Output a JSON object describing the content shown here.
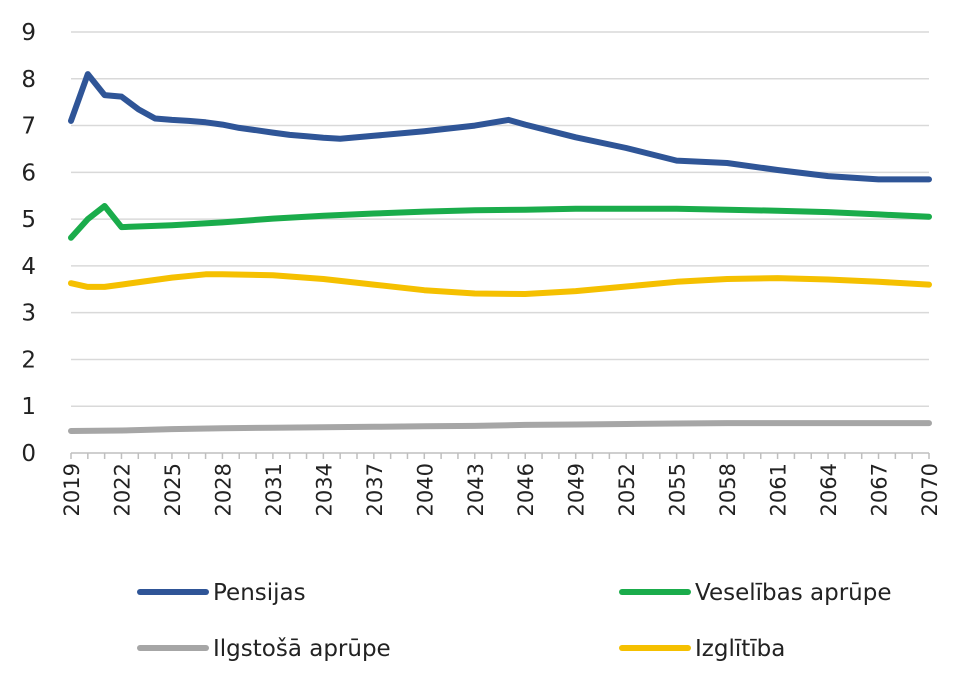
{
  "chart_data": {
    "type": "line",
    "title": "",
    "xlabel": "",
    "ylabel": "",
    "ylim": [
      0,
      9
    ],
    "yticks": [
      0,
      1,
      2,
      3,
      4,
      5,
      6,
      7,
      8,
      9
    ],
    "x_tick_labels": [
      "2019",
      "2022",
      "2025",
      "2028",
      "2031",
      "2034",
      "2037",
      "2040",
      "2043",
      "2046",
      "2049",
      "2052",
      "2055",
      "2058",
      "2061",
      "2064",
      "2067",
      "2070"
    ],
    "grid": "horizontal",
    "legend_position": "bottom",
    "series": [
      {
        "name": "Pensijas",
        "color": "#2f5597",
        "points": [
          [
            2019,
            7.1
          ],
          [
            2020,
            8.1
          ],
          [
            2021,
            7.65
          ],
          [
            2022,
            7.62
          ],
          [
            2023,
            7.35
          ],
          [
            2024,
            7.15
          ],
          [
            2025,
            7.12
          ],
          [
            2026,
            7.1
          ],
          [
            2027,
            7.07
          ],
          [
            2028,
            7.02
          ],
          [
            2029,
            6.95
          ],
          [
            2030,
            6.9
          ],
          [
            2031,
            6.85
          ],
          [
            2032,
            6.8
          ],
          [
            2033,
            6.77
          ],
          [
            2034,
            6.74
          ],
          [
            2035,
            6.72
          ],
          [
            2037,
            6.78
          ],
          [
            2040,
            6.88
          ],
          [
            2043,
            7.0
          ],
          [
            2045,
            7.12
          ],
          [
            2046,
            7.02
          ],
          [
            2049,
            6.75
          ],
          [
            2052,
            6.52
          ],
          [
            2055,
            6.25
          ],
          [
            2058,
            6.2
          ],
          [
            2061,
            6.05
          ],
          [
            2064,
            5.92
          ],
          [
            2067,
            5.85
          ],
          [
            2070,
            5.85
          ]
        ]
      },
      {
        "name": "Veselības aprūpe",
        "color": "#1aac4b",
        "points": [
          [
            2019,
            4.6
          ],
          [
            2020,
            5.0
          ],
          [
            2021,
            5.28
          ],
          [
            2022,
            4.83
          ],
          [
            2025,
            4.87
          ],
          [
            2028,
            4.93
          ],
          [
            2031,
            5.01
          ],
          [
            2034,
            5.07
          ],
          [
            2037,
            5.12
          ],
          [
            2040,
            5.16
          ],
          [
            2043,
            5.19
          ],
          [
            2046,
            5.2
          ],
          [
            2049,
            5.22
          ],
          [
            2052,
            5.22
          ],
          [
            2055,
            5.22
          ],
          [
            2058,
            5.2
          ],
          [
            2061,
            5.18
          ],
          [
            2064,
            5.15
          ],
          [
            2067,
            5.1
          ],
          [
            2070,
            5.05
          ]
        ]
      },
      {
        "name": "Ilgstošā aprūpe",
        "color": "#a6a6a6",
        "points": [
          [
            2019,
            0.47
          ],
          [
            2022,
            0.48
          ],
          [
            2025,
            0.51
          ],
          [
            2028,
            0.53
          ],
          [
            2031,
            0.54
          ],
          [
            2034,
            0.55
          ],
          [
            2037,
            0.56
          ],
          [
            2040,
            0.57
          ],
          [
            2043,
            0.58
          ],
          [
            2046,
            0.6
          ],
          [
            2049,
            0.61
          ],
          [
            2052,
            0.62
          ],
          [
            2055,
            0.63
          ],
          [
            2058,
            0.64
          ],
          [
            2061,
            0.64
          ],
          [
            2064,
            0.64
          ],
          [
            2067,
            0.64
          ],
          [
            2070,
            0.64
          ]
        ]
      },
      {
        "name": "Izglītība",
        "color": "#f5c000",
        "points": [
          [
            2019,
            3.63
          ],
          [
            2020,
            3.55
          ],
          [
            2021,
            3.55
          ],
          [
            2022,
            3.6
          ],
          [
            2025,
            3.75
          ],
          [
            2027,
            3.82
          ],
          [
            2028,
            3.82
          ],
          [
            2031,
            3.8
          ],
          [
            2034,
            3.72
          ],
          [
            2037,
            3.6
          ],
          [
            2040,
            3.48
          ],
          [
            2043,
            3.41
          ],
          [
            2046,
            3.4
          ],
          [
            2049,
            3.46
          ],
          [
            2052,
            3.56
          ],
          [
            2055,
            3.66
          ],
          [
            2058,
            3.72
          ],
          [
            2061,
            3.74
          ],
          [
            2064,
            3.71
          ],
          [
            2067,
            3.66
          ],
          [
            2070,
            3.6
          ]
        ]
      }
    ]
  }
}
